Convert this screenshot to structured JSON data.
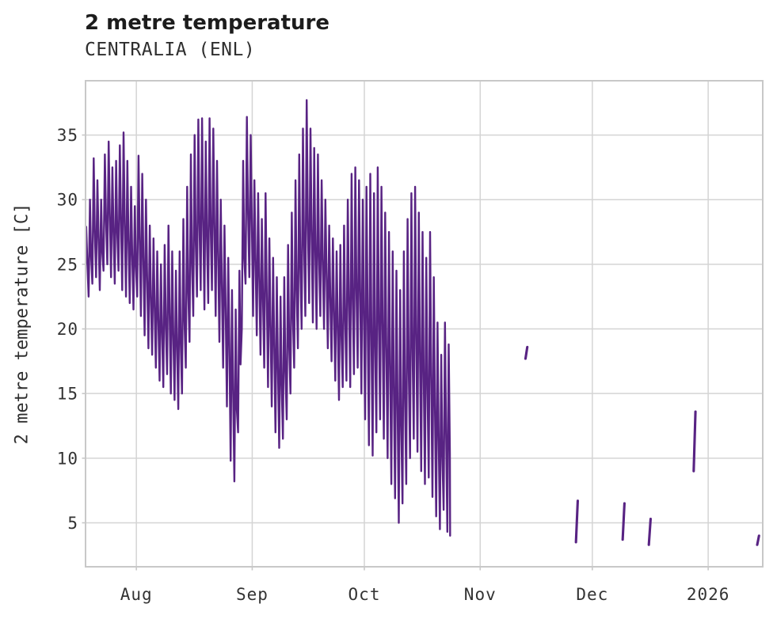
{
  "chart": {
    "title": "2 metre temperature",
    "subtitle": "CENTRALIA (ENL)",
    "ylabel": "2 metre temperature [C]"
  },
  "chart_data": {
    "type": "line",
    "title": "2 metre temperature",
    "subtitle": "CENTRALIA (ENL)",
    "xlabel": "",
    "ylabel": "2 metre temperature [C]",
    "y_unit": "C",
    "ylim": [
      1.6,
      39.2
    ],
    "yticks": [
      5,
      10,
      15,
      20,
      25,
      30,
      35
    ],
    "grid": true,
    "legend": false,
    "line_color": "#582383",
    "colors": {
      "grid": "#d4d4d4",
      "spine": "#c8c8c8",
      "tick_text": "#333333",
      "title_text": "#1c1c1c"
    },
    "x_axis": {
      "unit": "days since trace start (mid-July)",
      "xlim": [
        0.4,
        181.6
      ],
      "month_ticks": [
        {
          "label": "Aug",
          "day": 14
        },
        {
          "label": "Sep",
          "day": 45
        },
        {
          "label": "Oct",
          "day": 75
        },
        {
          "label": "Nov",
          "day": 106
        },
        {
          "label": "Dec",
          "day": 136
        },
        {
          "label": "2026",
          "day": 167
        }
      ]
    },
    "main_series": {
      "name": "2 metre temperature",
      "sampling": "daily min/max envelope read from plot, sub-daily spikes",
      "start_day": 0,
      "daily_min": [
        23.0,
        22.5,
        23.5,
        24.0,
        23.0,
        24.5,
        25.0,
        24.0,
        23.5,
        24.5,
        23.0,
        22.5,
        22.0,
        21.5,
        22.5,
        21.0,
        19.5,
        18.5,
        18.0,
        17.0,
        16.0,
        15.5,
        16.5,
        15.0,
        14.5,
        13.8,
        15.0,
        17.0,
        19.0,
        21.0,
        22.5,
        23.0,
        21.5,
        22.0,
        23.0,
        21.0,
        19.0,
        17.0,
        14.0,
        9.8,
        8.2,
        12.0,
        20.0,
        23.5,
        24.0,
        21.0,
        19.5,
        18.0,
        17.0,
        15.5,
        14.0,
        12.0,
        10.8,
        11.5,
        13.0,
        15.0,
        17.0,
        18.5,
        20.0,
        21.0,
        22.0,
        20.5,
        20.0,
        21.0,
        20.0,
        18.5,
        17.5,
        16.0,
        14.5,
        15.5,
        16.0,
        15.5,
        16.5,
        17.0,
        15.0,
        13.0,
        11.0,
        10.2,
        12.0,
        13.0,
        11.5,
        10.0,
        8.0,
        6.9,
        5.0,
        6.5,
        8.0,
        10.0,
        11.5,
        10.5,
        9.0,
        8.0,
        8.5,
        7.0,
        5.5,
        4.5,
        6.0,
        4.3
      ],
      "daily_max": [
        27.9,
        30.0,
        33.2,
        31.5,
        30.0,
        33.5,
        34.5,
        32.5,
        33.0,
        34.2,
        35.2,
        33.0,
        31.0,
        29.5,
        33.4,
        32.0,
        30.0,
        28.0,
        27.0,
        26.0,
        25.0,
        26.5,
        28.0,
        26.0,
        24.5,
        26.0,
        28.5,
        31.0,
        33.5,
        35.0,
        36.2,
        36.3,
        34.5,
        36.3,
        35.5,
        33.0,
        30.0,
        28.0,
        25.5,
        23.0,
        21.5,
        24.5,
        33.0,
        36.4,
        35.0,
        31.5,
        30.5,
        28.5,
        30.5,
        27.0,
        25.5,
        24.0,
        22.5,
        24.0,
        26.5,
        29.0,
        31.5,
        33.5,
        35.5,
        37.7,
        35.5,
        34.0,
        33.5,
        31.5,
        30.0,
        28.0,
        27.0,
        26.0,
        26.5,
        28.0,
        30.0,
        32.0,
        32.5,
        31.5,
        30.0,
        31.0,
        32.0,
        30.5,
        32.5,
        31.0,
        29.0,
        27.5,
        26.0,
        24.5,
        23.0,
        26.0,
        28.5,
        30.5,
        31.0,
        29.0,
        27.5,
        25.5,
        27.5,
        24.0,
        20.5,
        18.0,
        20.5,
        18.8
      ],
      "end_value": 4.0
    },
    "sparse_segments": [
      {
        "day": 118.0,
        "min": 17.7,
        "max": 18.6
      },
      {
        "day": 131.5,
        "min": 3.5,
        "max": 6.7
      },
      {
        "day": 144.0,
        "min": 3.7,
        "max": 6.5
      },
      {
        "day": 151.0,
        "min": 3.3,
        "max": 5.3
      },
      {
        "day": 163.0,
        "min": 9.0,
        "max": 13.6
      },
      {
        "day": 180.0,
        "min": 3.3,
        "max": 4.0
      }
    ]
  }
}
